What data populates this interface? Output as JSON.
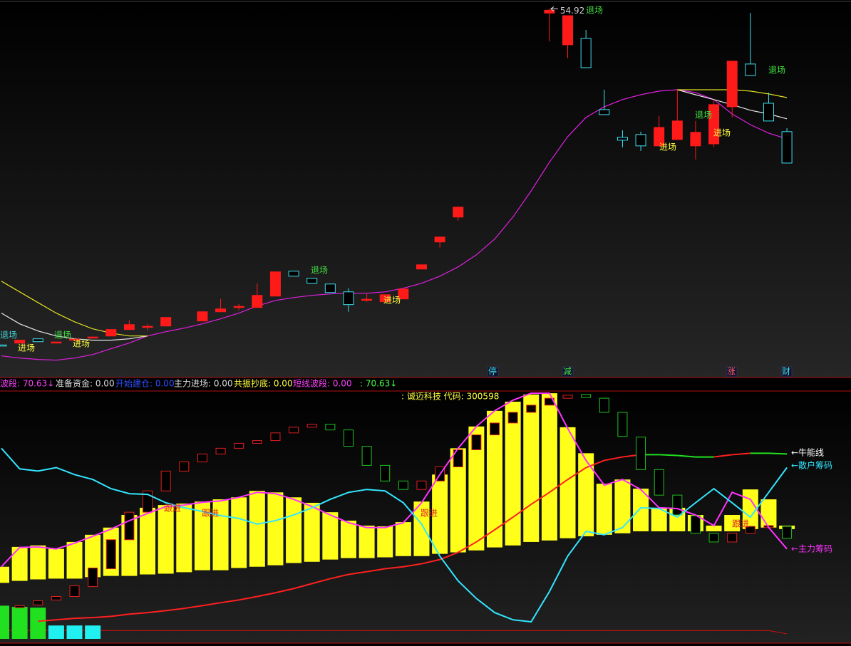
{
  "chart_data": [
    {
      "type": "candlestick",
      "ylim": [
        22.5,
        55.7
      ],
      "up_color": "#ff1a1a",
      "down_color": "#40e0f0",
      "candles": [
        [
          25.36,
          25.4,
          25.28,
          25.34
        ],
        [
          25.53,
          25.78,
          25.53,
          25.78
        ],
        [
          25.9,
          25.9,
          25.65,
          25.65
        ],
        [
          25.59,
          25.62,
          25.56,
          25.62
        ],
        [
          25.84,
          25.87,
          25.81,
          25.87
        ],
        [
          26.03,
          26.06,
          26.0,
          26.06
        ],
        [
          26.15,
          26.72,
          26.15,
          26.72
        ],
        [
          26.72,
          27.53,
          26.72,
          27.15
        ],
        [
          26.97,
          27.22,
          26.59,
          27.0
        ],
        [
          27.03,
          27.78,
          27.03,
          27.78
        ],
        null,
        [
          27.47,
          28.28,
          27.47,
          28.28
        ],
        [
          28.28,
          29.41,
          28.28,
          28.53
        ],
        [
          28.72,
          28.97,
          28.41,
          28.75
        ],
        [
          28.66,
          30.79,
          28.66,
          29.72
        ],
        [
          29.66,
          31.79,
          29.66,
          31.79
        ],
        [
          31.85,
          31.85,
          31.41,
          31.41
        ],
        [
          31.22,
          31.22,
          30.79,
          30.79
        ],
        [
          30.72,
          30.72,
          29.97,
          29.97
        ],
        [
          30.03,
          30.35,
          28.28,
          28.91
        ],
        [
          29.35,
          29.85,
          29.16,
          29.38
        ],
        [
          29.16,
          29.78,
          29.16,
          29.78
        ],
        [
          29.41,
          30.28,
          29.41,
          30.28
        ],
        [
          32.04,
          32.41,
          32.04,
          32.41
        ],
        [
          34.42,
          34.85,
          33.92,
          34.85
        ],
        [
          36.61,
          37.48,
          36.29,
          37.48
        ],
        null,
        null,
        null,
        null,
        [
          54.55,
          54.92,
          52.07,
          54.8
        ],
        [
          51.76,
          54.32,
          50.57,
          54.32
        ],
        [
          52.32,
          53.07,
          49.75,
          49.75
        ],
        [
          46.06,
          47.81,
          45.62,
          45.62
        ],
        [
          43.62,
          44.24,
          42.74,
          43.37
        ],
        [
          43.87,
          44.12,
          42.43,
          42.87
        ],
        [
          42.87,
          45.5,
          42.87,
          44.49
        ],
        [
          43.43,
          47.81,
          43.43,
          45.06
        ],
        [
          42.87,
          45.06,
          41.68,
          44.06
        ],
        [
          43.05,
          46.94,
          42.74,
          46.5
        ],
        [
          46.31,
          50.32,
          45.37,
          50.32
        ],
        [
          50.07,
          54.57,
          49.06,
          49.06
        ],
        [
          46.62,
          47.56,
          45.06,
          45.06
        ],
        [
          44.12,
          44.43,
          41.36,
          41.36
        ]
      ],
      "lines": [
        {
          "color": "#e020e0",
          "values": [
            24.4,
            24.21,
            24.09,
            24.02,
            24.21,
            24.52,
            25.03,
            25.53,
            26.15,
            26.53,
            26.84,
            27.22,
            27.66,
            28.16,
            28.78,
            29.28,
            29.53,
            29.72,
            29.85,
            29.91,
            29.91,
            30.03,
            30.35,
            30.79,
            31.41,
            32.23,
            33.29,
            34.67,
            36.61,
            38.92,
            41.43,
            43.68,
            45.37,
            46.31,
            46.94,
            47.37,
            47.69,
            47.81,
            47.56,
            46.94,
            45.68,
            44.74,
            43.99,
            43.49
          ]
        },
        {
          "color": "#e8e8e8",
          "values": [
            28.16,
            27.22,
            26.59,
            26.15,
            25.9,
            25.78,
            25.78,
            25.9,
            26.15,
            null,
            null,
            null,
            null,
            null,
            null,
            null,
            null,
            null,
            null,
            null,
            null,
            null,
            null,
            null,
            null,
            null,
            null,
            null,
            null,
            null,
            null,
            null,
            null,
            null,
            null,
            null,
            null,
            47.81,
            47.37,
            46.94,
            46.5,
            46.0,
            45.68,
            45.25
          ]
        },
        {
          "color": "#e0e020",
          "values": [
            30.97,
            30.03,
            29.09,
            28.16,
            27.4,
            26.78,
            26.4,
            26.15,
            26.15,
            null,
            null,
            null,
            null,
            null,
            null,
            null,
            null,
            null,
            null,
            null,
            null,
            null,
            null,
            null,
            null,
            null,
            null,
            null,
            null,
            null,
            null,
            null,
            null,
            null,
            null,
            null,
            null,
            47.81,
            47.81,
            47.81,
            47.81,
            47.69,
            47.44,
            47.12
          ]
        }
      ],
      "annotations": [
        {
          "text": "退场",
          "color": "#40d0d0"
        },
        {
          "text": "进场",
          "color": "#ffff40"
        },
        {
          "text": "退场",
          "color": "#40e040"
        },
        {
          "text": "进场",
          "color": "#ffff40"
        },
        {
          "text": "退场",
          "color": "#40e040"
        },
        {
          "text": "进场",
          "color": "#ffff40"
        },
        {
          "text": "退场",
          "color": "#40e040"
        },
        {
          "text": "退场",
          "color": "#40e040"
        },
        {
          "text": "退场",
          "color": "#40e040"
        },
        {
          "text": "进场",
          "color": "#ffff40"
        },
        {
          "text": "进场",
          "color": "#ffff40"
        }
      ]
    },
    {
      "type": "indicator",
      "title": ": 诚迈科技 代码: 300598",
      "ylim": [
        0,
        100
      ],
      "range_bar_color": "#ffff1a",
      "range_bars": [
        [
          22.6,
          29.1
        ],
        [
          23.4,
          37.1
        ],
        [
          24.0,
          37.7
        ],
        [
          24.3,
          36.3
        ],
        [
          24.3,
          39.1
        ],
        [
          24.9,
          42.0
        ],
        [
          25.4,
          44.9
        ],
        [
          25.4,
          50.0
        ],
        [
          26.0,
          52.9
        ],
        [
          26.3,
          54.0
        ],
        [
          26.9,
          54.6
        ],
        [
          27.7,
          55.4
        ],
        [
          27.7,
          56.3
        ],
        [
          28.6,
          57.1
        ],
        [
          29.1,
          59.7
        ],
        [
          29.7,
          59.1
        ],
        [
          30.6,
          57.1
        ],
        [
          31.1,
          54.9
        ],
        [
          32.0,
          51.1
        ],
        [
          32.6,
          47.7
        ],
        [
          32.6,
          45.7
        ],
        [
          32.9,
          45.4
        ],
        [
          33.4,
          47.1
        ],
        [
          33.4,
          55.4
        ],
        [
          34.3,
          66.3
        ],
        [
          34.9,
          76.9
        ],
        [
          35.7,
          85.7
        ],
        [
          36.9,
          92.0
        ],
        [
          37.7,
          95.7
        ],
        [
          39.1,
          98.6
        ],
        [
          39.7,
          99.1
        ],
        [
          40.6,
          85.4
        ],
        [
          41.4,
          74.9
        ],
        [
          42.0,
          62.6
        ],
        [
          42.6,
          64.3
        ],
        [
          43.4,
          60.6
        ],
        [
          43.4,
          52.9
        ],
        [
          43.4,
          52.9
        ],
        [
          43.4,
          50.0
        ],
        [
          43.4,
          45.7
        ],
        [
          43.4,
          50.0
        ],
        [
          44.3,
          60.3
        ],
        [
          44.9,
          56.3
        ],
        [
          44.3,
          45.7
        ]
      ],
      "box_up_color": "#e02020",
      "box_down_color": "#20c020",
      "boxes": [
        null,
        [
          12.6,
          13.4
        ],
        [
          13.7,
          15.4
        ],
        [
          15.7,
          17.1
        ],
        [
          17.1,
          21.4
        ],
        [
          21.1,
          28.6
        ],
        [
          28.3,
          40.0
        ],
        [
          40.0,
          51.1
        ],
        [
          51.1,
          59.7
        ],
        [
          59.7,
          67.7
        ],
        [
          67.7,
          71.4
        ],
        [
          71.4,
          74.6
        ],
        [
          74.6,
          76.9
        ],
        [
          76.9,
          78.9
        ],
        [
          78.9,
          80.0
        ],
        [
          80.0,
          83.1
        ],
        [
          83.1,
          85.4
        ],
        [
          85.4,
          86.6
        ],
        [
          86.6,
          84.3
        ],
        [
          84.3,
          77.7
        ],
        [
          77.7,
          70.0
        ],
        [
          70.0,
          63.7
        ],
        [
          63.7,
          60.3
        ],
        [
          60.3,
          63.7
        ],
        [
          63.7,
          69.4
        ],
        [
          69.4,
          76.3
        ],
        [
          76.3,
          82.3
        ],
        [
          82.3,
          87.1
        ],
        [
          87.1,
          91.4
        ],
        [
          91.4,
          94.3
        ],
        [
          94.3,
          97.1
        ],
        [
          97.1,
          98.3
        ],
        [
          98.6,
          97.4
        ],
        [
          97.1,
          91.4
        ],
        [
          91.4,
          81.7
        ],
        [
          81.4,
          68.3
        ],
        [
          68.3,
          58.0
        ],
        [
          58.0,
          50.0
        ],
        [
          49.7,
          42.6
        ],
        [
          42.6,
          39.1
        ],
        [
          39.1,
          42.6
        ],
        [
          42.6,
          45.4
        ],
        [
          44.9,
          45.7
        ],
        [
          45.4,
          40.6
        ]
      ],
      "series": [
        {
          "name": "←主力筹码",
          "color": "#ff33ff",
          "values": [
            29.1,
            36.9,
            37.1,
            36.3,
            38.6,
            41.4,
            44.3,
            47.7,
            50.6,
            53.4,
            54.0,
            55.1,
            55.7,
            57.1,
            59.1,
            58.6,
            56.3,
            53.4,
            50.0,
            46.9,
            44.9,
            44.9,
            46.9,
            54.9,
            66.3,
            76.9,
            85.7,
            92.0,
            96.3,
            99.1,
            99.1,
            84.9,
            72.0,
            62.0,
            64.3,
            60.3,
            52.9,
            52.6,
            50.0,
            45.7,
            59.1,
            56.3,
            44.9,
            36.3
          ]
        },
        {
          "name": "←散户筹码",
          "color": "#33e6ff",
          "values": [
            76.9,
            68.6,
            67.7,
            69.1,
            66.3,
            64.3,
            60.6,
            58.6,
            58.3,
            54.9,
            52.9,
            51.4,
            49.7,
            48.6,
            46.3,
            47.7,
            50.0,
            52.9,
            56.3,
            59.1,
            60.3,
            59.7,
            54.9,
            46.3,
            33.4,
            23.4,
            16.3,
            10.6,
            7.7,
            6.9,
            19.1,
            33.4,
            43.4,
            42.0,
            44.9,
            52.9,
            52.6,
            49.1,
            54.9,
            60.6,
            54.9,
            49.1,
            59.1,
            69.1
          ]
        },
        {
          "name": "←牛能线",
          "color": "#ff2020",
          "down_color": "#20e020",
          "values": [
            null,
            null,
            7.1,
            7.7,
            8.3,
            8.6,
            9.1,
            10.0,
            10.6,
            11.4,
            12.3,
            13.4,
            14.6,
            15.7,
            17.1,
            18.6,
            20.3,
            22.3,
            24.3,
            26.0,
            27.1,
            28.3,
            29.1,
            30.3,
            32.0,
            34.9,
            39.1,
            44.0,
            49.1,
            54.3,
            59.1,
            64.3,
            69.1,
            72.0,
            73.4,
            74.3,
            74.3,
            74.0,
            73.4,
            73.4,
            74.3,
            74.9,
            74.9,
            74.6
          ]
        }
      ],
      "name_colors": [
        "#ff33ff",
        "#33e6ff",
        "#ffffff"
      ],
      "green_bars": {
        "color": "#20e020",
        "values": [
          13.4,
          12.9,
          12.6,
          null,
          null,
          null,
          null,
          null,
          null,
          null,
          null,
          null,
          null,
          null,
          null,
          null,
          null,
          null,
          null,
          null,
          null,
          null,
          null,
          null,
          null,
          null,
          null,
          null,
          null,
          null,
          null,
          null,
          null,
          null,
          null,
          null,
          null,
          null,
          null,
          null,
          null,
          null,
          null,
          null
        ]
      },
      "cyan_bars": {
        "color": "#20f0f0",
        "values": [
          null,
          null,
          null,
          5.4,
          5.4,
          5.4,
          null,
          null,
          null,
          null,
          null,
          null,
          null,
          null,
          null,
          null,
          null,
          null,
          null,
          null,
          null,
          null,
          null,
          null,
          null,
          null,
          null,
          null,
          null,
          null,
          null,
          null,
          null,
          null,
          null,
          null,
          null,
          null,
          null,
          null,
          null,
          null,
          null,
          null
        ]
      },
      "base_line": {
        "color": "#d01010",
        "values": [
          3.4,
          3.4,
          3.4,
          3.4,
          3.4,
          3.4,
          3.4,
          3.4,
          3.4,
          3.4,
          3.4,
          3.4,
          3.4,
          3.4,
          3.4,
          3.4,
          3.4,
          3.4,
          3.4,
          3.4,
          3.4,
          3.4,
          3.4,
          3.4,
          3.4,
          3.4,
          3.4,
          3.4,
          3.4,
          3.4,
          3.4,
          3.4,
          3.4,
          3.4,
          3.4,
          3.4,
          3.4,
          3.4,
          3.4,
          3.4,
          3.4,
          3.4,
          3.4,
          2.0
        ]
      },
      "annotations": [
        {
          "text": "跟进",
          "color": "#e02020"
        },
        {
          "text": "跟进",
          "color": "#e02020"
        },
        {
          "text": "跟进",
          "color": "#e02020"
        },
        {
          "text": "跟进",
          "color": "#e02020"
        }
      ]
    }
  ],
  "signal_labels": [
    {
      "text": "停",
      "color": "#40e0e0"
    },
    {
      "text": "减",
      "color": "#40e040"
    },
    {
      "text": "涨",
      "color": "#ff6060"
    },
    {
      "text": "财",
      "color": "#40e0e0"
    }
  ],
  "info_bar": [
    {
      "text": "波段: 70.63↓",
      "color": "#ff40ff"
    },
    {
      "text": "准备资金: 0.00",
      "color": "#dddddd"
    },
    {
      "text": "开始建仓: 0.00",
      "color": "#3050ff"
    },
    {
      "text": "主力进场: 0.00",
      "color": "#dddddd"
    },
    {
      "text": "共振抄底: 0.00",
      "color": "#ffff40"
    },
    {
      "text": "短线波段: 0.00",
      "color": "#ff40ff"
    },
    {
      "text": ": 70.63↓",
      "color": "#40ff40"
    }
  ]
}
